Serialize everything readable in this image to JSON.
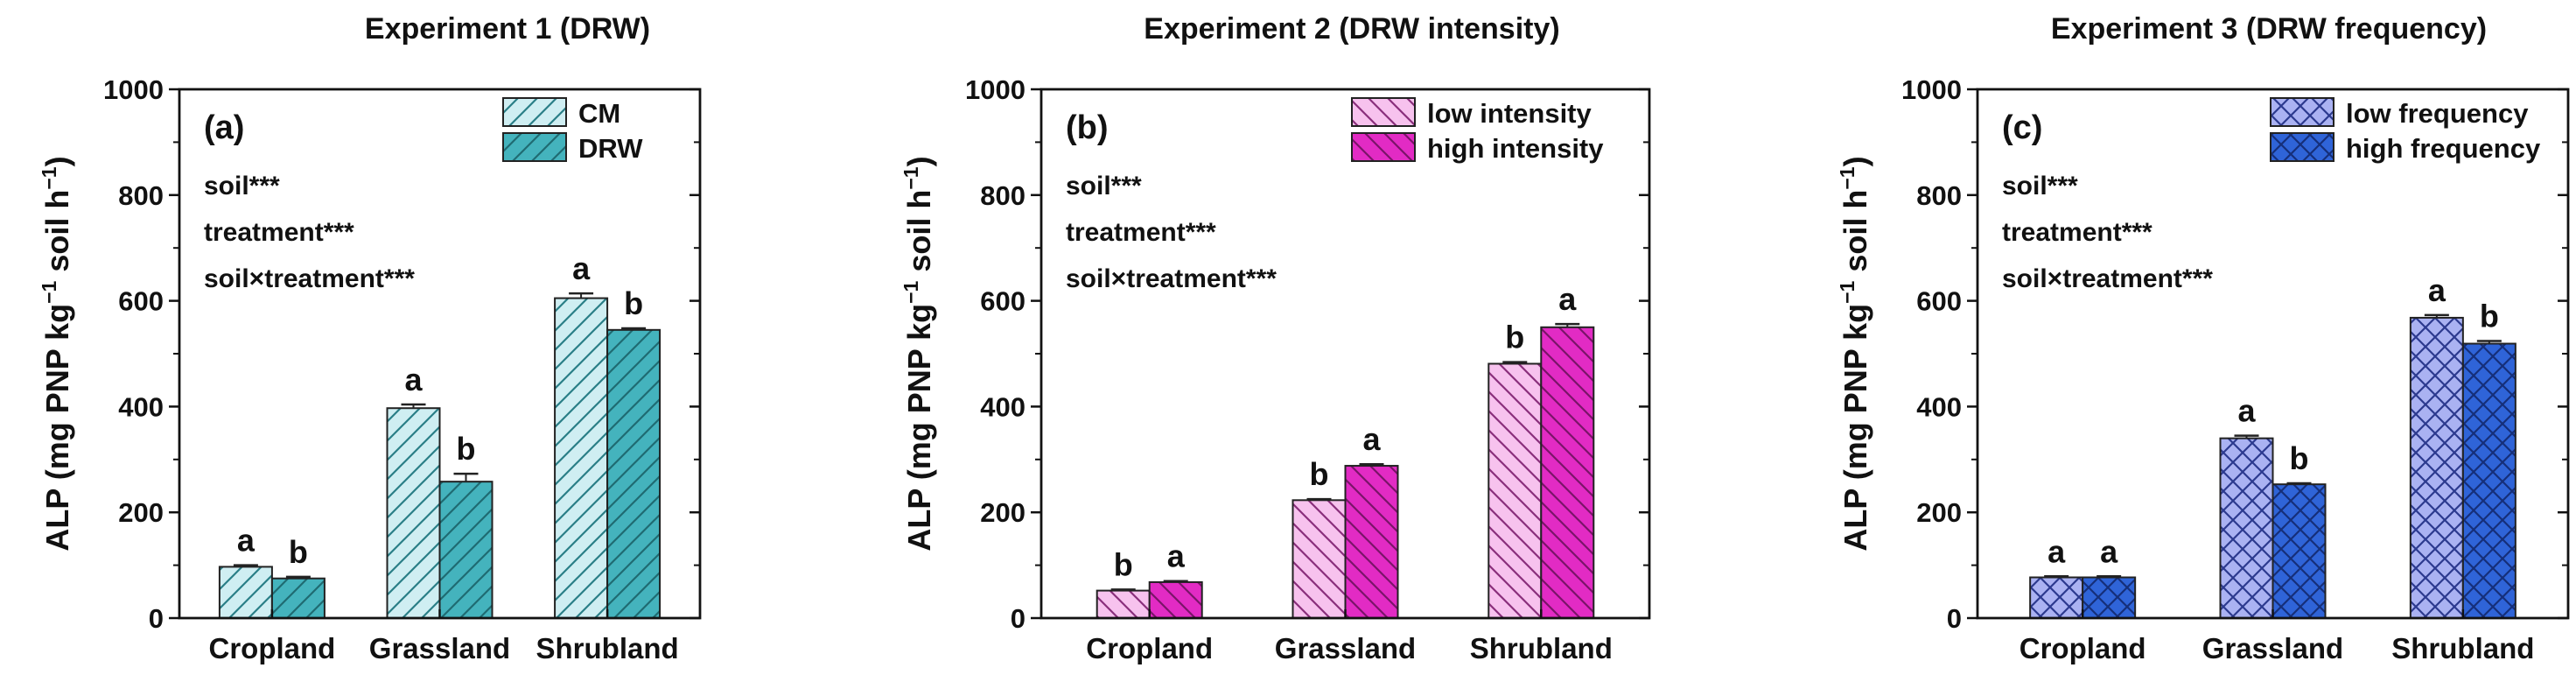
{
  "chart_data": [
    {
      "type": "bar",
      "title": "Experiment 1 (DRW)",
      "panel_label": "(a)",
      "xlabel": "",
      "ylabel_parts": [
        "ALP (mg  PNP kg",
        "−1",
        " soil h",
        "−1",
        ")"
      ],
      "ylim": [
        0,
        1000
      ],
      "yticks": [
        0,
        200,
        400,
        600,
        800,
        1000
      ],
      "categories": [
        "Cropland",
        "Grassland",
        "Shrubland"
      ],
      "series": [
        {
          "name": "CM",
          "values": [
            97,
            397,
            605
          ],
          "errors": [
            3,
            7,
            9
          ],
          "letters": [
            "a",
            "a",
            "a"
          ],
          "color": "#cfeef2",
          "stroke": "#2a7f87",
          "hatch": "fwd"
        },
        {
          "name": "DRW",
          "values": [
            75,
            258,
            545
          ],
          "errors": [
            3,
            15,
            3
          ],
          "letters": [
            "b",
            "b",
            "b"
          ],
          "color": "#44b3bd",
          "stroke": "#1f6b72",
          "hatch": "fwd"
        }
      ],
      "stats": [
        "soil***",
        "treatment***",
        "soil×treatment***"
      ]
    },
    {
      "type": "bar",
      "title": "Experiment 2 (DRW intensity)",
      "panel_label": "(b)",
      "xlabel": "",
      "ylabel_parts": [
        "ALP (mg  PNP kg",
        "−1",
        " soil h",
        "−1",
        ")"
      ],
      "ylim": [
        0,
        1000
      ],
      "yticks": [
        0,
        200,
        400,
        600,
        800,
        1000
      ],
      "categories": [
        "Cropland",
        "Grassland",
        "Shrubland"
      ],
      "series": [
        {
          "name": "low intensity",
          "values": [
            52,
            223,
            481
          ],
          "errors": [
            2,
            2,
            3
          ],
          "letters": [
            "b",
            "b",
            "b"
          ],
          "color": "#f7c2ee",
          "stroke": "#8a2f7c",
          "hatch": "back"
        },
        {
          "name": "high intensity",
          "values": [
            68,
            288,
            550
          ],
          "errors": [
            2,
            3,
            6
          ],
          "letters": [
            "a",
            "a",
            "a"
          ],
          "color": "#e22bc4",
          "stroke": "#7a1469",
          "hatch": "back"
        }
      ],
      "stats": [
        "soil***",
        "treatment***",
        "soil×treatment***"
      ]
    },
    {
      "type": "bar",
      "title": "Experiment 3 (DRW frequency)",
      "panel_label": "(c)",
      "xlabel": "",
      "ylabel_parts": [
        "ALP (mg  PNP kg",
        "−1",
        " soil h",
        "−1",
        ")"
      ],
      "ylim": [
        0,
        1000
      ],
      "yticks": [
        0,
        200,
        400,
        600,
        800,
        1000
      ],
      "categories": [
        "Cropland",
        "Grassland",
        "Shrubland"
      ],
      "series": [
        {
          "name": "low frequency",
          "values": [
            77,
            340,
            568
          ],
          "errors": [
            2,
            5,
            5
          ],
          "letters": [
            "a",
            "a",
            "a"
          ],
          "color": "#aab2f2",
          "stroke": "#2c3a8f",
          "hatch": "cross"
        },
        {
          "name": "high frequency",
          "values": [
            77,
            253,
            519
          ],
          "errors": [
            2,
            2,
            5
          ],
          "letters": [
            "a",
            "b",
            "b"
          ],
          "color": "#2f64d8",
          "stroke": "#152f7a",
          "hatch": "cross"
        }
      ],
      "stats": [
        "soil***",
        "treatment***",
        "soil×treatment***"
      ]
    }
  ]
}
